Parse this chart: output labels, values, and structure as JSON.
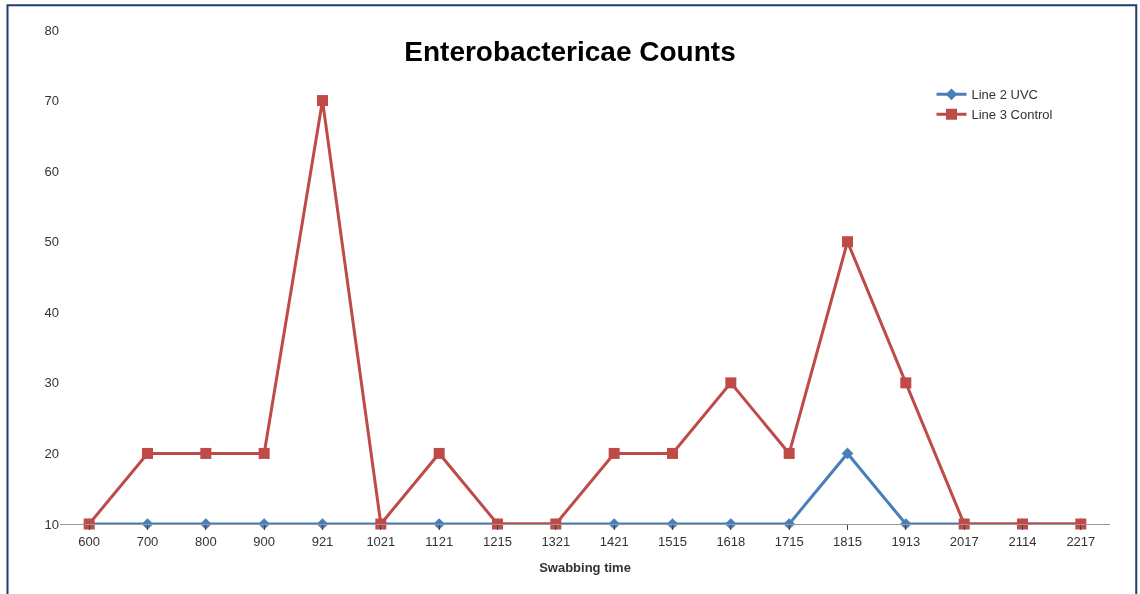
{
  "chart_data": {
    "type": "line",
    "title": "Enterobactericae Counts",
    "xlabel": "Swabbing time",
    "categories": [
      "600",
      "700",
      "800",
      "900",
      "921",
      "1021",
      "1121",
      "1215",
      "1321",
      "1421",
      "1515",
      "1618",
      "1715",
      "1815",
      "1913",
      "2017",
      "2114",
      "2217"
    ],
    "series": [
      {
        "name": "Line 2 UVC",
        "color": "#4a7ebb",
        "marker": "diamond",
        "values": [
          10,
          10,
          10,
          10,
          10,
          10,
          10,
          10,
          10,
          10,
          10,
          10,
          10,
          20,
          10,
          10,
          10,
          10
        ]
      },
      {
        "name": "Line 3 Control",
        "color": "#be4b48",
        "marker": "square",
        "values": [
          10,
          20,
          20,
          20,
          70,
          10,
          20,
          10,
          10,
          20,
          20,
          30,
          20,
          50,
          30,
          10,
          10,
          10
        ]
      }
    ],
    "ylim": [
      10,
      80
    ],
    "yticks": [
      10,
      20,
      30,
      40,
      50,
      60,
      70,
      80
    ],
    "grid": false,
    "legend": "top right",
    "line_style": "solid"
  }
}
